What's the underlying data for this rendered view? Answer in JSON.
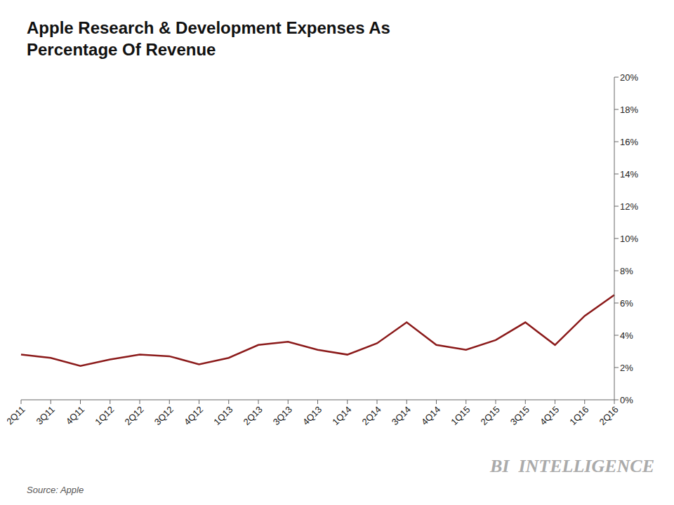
{
  "chart_data": {
    "type": "line",
    "title": "Apple Research & Development Expenses As\nPercentage Of Revenue",
    "categories": [
      "2Q11",
      "3Q11",
      "4Q11",
      "1Q12",
      "2Q12",
      "3Q12",
      "4Q12",
      "1Q13",
      "2Q13",
      "3Q13",
      "4Q13",
      "1Q14",
      "2Q14",
      "3Q14",
      "4Q14",
      "1Q15",
      "2Q15",
      "3Q15",
      "4Q15",
      "1Q16",
      "2Q16"
    ],
    "values": [
      2.8,
      2.6,
      2.1,
      2.5,
      2.8,
      2.7,
      2.2,
      2.6,
      3.4,
      3.6,
      3.1,
      2.8,
      3.5,
      4.8,
      3.4,
      3.1,
      3.7,
      4.8,
      3.4,
      5.2,
      6.5
    ],
    "color": "#8B1A1A",
    "ylim": [
      0,
      20
    ],
    "yticks": [
      {
        "value": 0,
        "label": "0%"
      },
      {
        "value": 2,
        "label": "2%"
      },
      {
        "value": 4,
        "label": "4%"
      },
      {
        "value": 6,
        "label": "6%"
      },
      {
        "value": 8,
        "label": "8%"
      },
      {
        "value": 10,
        "label": "10%"
      },
      {
        "value": 12,
        "label": "12%"
      },
      {
        "value": 14,
        "label": "14%"
      },
      {
        "value": 16,
        "label": "16%"
      },
      {
        "value": 18,
        "label": "18%"
      },
      {
        "value": 20,
        "label": "20%"
      }
    ],
    "grid": false,
    "annotations": [
      "Source: Apple",
      "BI  INTELLIGENCE"
    ]
  }
}
